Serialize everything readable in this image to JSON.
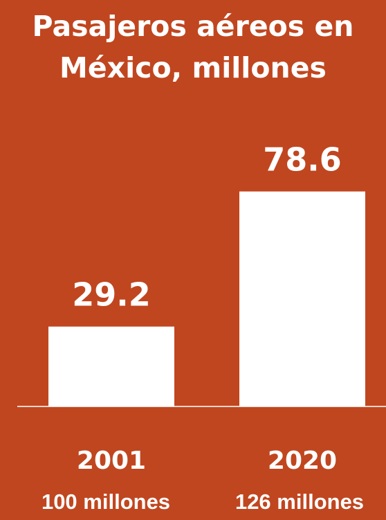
{
  "background_color": "#c0461f",
  "bar_color": "#ffffff",
  "chart_data": {
    "type": "bar",
    "title_lines": [
      "Pasajeros aéreos en",
      "México, millones"
    ],
    "categories": [
      "2001",
      "2020"
    ],
    "values": [
      29.2,
      78.6
    ],
    "value_labels": [
      "29.2",
      "78.6"
    ],
    "xlabel": "",
    "ylabel": "",
    "ylim": [
      0,
      100
    ],
    "grid": false,
    "legend": "none"
  },
  "footnotes": [
    "100 millones",
    "126 millones"
  ]
}
